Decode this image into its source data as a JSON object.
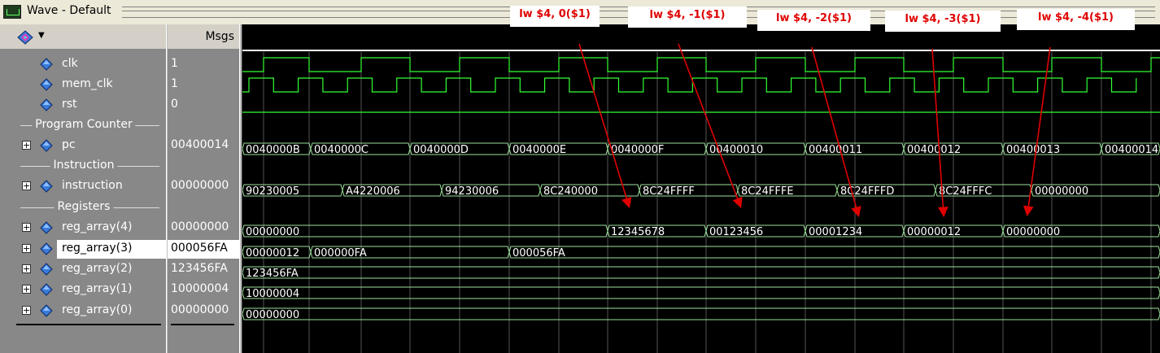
{
  "window": {
    "title": "Wave - Default"
  },
  "header": {
    "msgs_label": "Msgs"
  },
  "signals": [
    {
      "kind": "signal",
      "name": "clk",
      "value": "1",
      "expandable": false
    },
    {
      "kind": "signal",
      "name": "mem_clk",
      "value": "1",
      "expandable": false
    },
    {
      "kind": "signal",
      "name": "rst",
      "value": "0",
      "expandable": false
    },
    {
      "kind": "divider",
      "name": "Program Counter"
    },
    {
      "kind": "signal",
      "name": "pc",
      "value": "00400014",
      "expandable": true
    },
    {
      "kind": "divider",
      "name": "Instruction"
    },
    {
      "kind": "signal",
      "name": "instruction",
      "value": "00000000",
      "expandable": true
    },
    {
      "kind": "divider",
      "name": "Registers"
    },
    {
      "kind": "signal",
      "name": "reg_array(4)",
      "value": "00000000",
      "expandable": true
    },
    {
      "kind": "signal",
      "name": "reg_array(3)",
      "value": "000056FA",
      "expandable": true,
      "selected": true
    },
    {
      "kind": "signal",
      "name": "reg_array(2)",
      "value": "123456FA",
      "expandable": true
    },
    {
      "kind": "signal",
      "name": "reg_array(1)",
      "value": "10000004",
      "expandable": true
    },
    {
      "kind": "signal",
      "name": "reg_array(0)",
      "value": "00000000",
      "expandable": true
    }
  ],
  "waves": {
    "clk_period_x": 121,
    "pc": [
      "0040000B",
      "0040000C",
      "0040000D",
      "0040000E",
      "0040000F",
      "00400010",
      "00400011",
      "00400012",
      "00400013",
      "00400014"
    ],
    "instruction": [
      "90230005",
      "A4220006",
      "94230006",
      "8C240000",
      "8C24FFFF",
      "8C24FFFE",
      "8C24FFFD",
      "8C24FFFC",
      "00000000"
    ],
    "reg4": [
      "00000000",
      "12345678",
      "00123456",
      "00001234",
      "00000012",
      "00000000"
    ],
    "reg3": [
      "00000012",
      "000000FA",
      "000056FA"
    ],
    "reg2": [
      "123456FA"
    ],
    "reg1": [
      "10000004"
    ],
    "reg0": [
      "00000000"
    ]
  },
  "annotations": [
    {
      "text": "lw $4, 0($1)"
    },
    {
      "text": "lw $4, -1($1)"
    },
    {
      "text": "lw $4, -2($1)"
    },
    {
      "text": "lw $4, -3($1)"
    },
    {
      "text": "lw $4, -4($1)"
    }
  ],
  "colors": {
    "wave": "#33ff33",
    "bus": "#9be09b",
    "arrow": "#e00000",
    "grid": "#555555"
  }
}
